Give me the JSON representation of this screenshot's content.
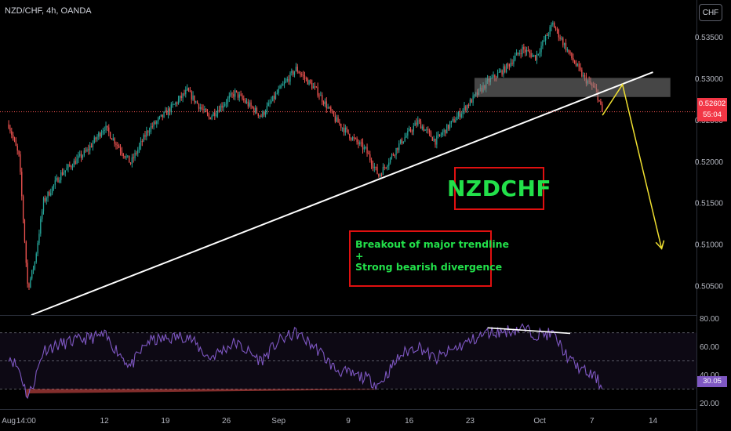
{
  "header": {
    "symbol": "NZD/CHF, 4h, OANDA",
    "currency_button": "CHF"
  },
  "annotations": {
    "title": "NZDCHF",
    "note_line1": "Breakout of major trendline",
    "note_plus": "+",
    "note_line2": "Strong bearish divergence"
  },
  "colors": {
    "up": "#26a69a",
    "down": "#ef5350",
    "trendline": "#ffffff",
    "projection": "#f0e030",
    "zone": "#808080",
    "rsi_line": "#7e57c2",
    "annotation_text": "#22e04a",
    "annotation_border": "#e01010"
  },
  "chart_data": [
    {
      "type": "candlestick",
      "title": "NZD/CHF, 4h, OANDA",
      "y_ticks": [
        "0.53500",
        "0.53000",
        "0.52500",
        "0.52000",
        "0.51500",
        "0.51000",
        "0.50500"
      ],
      "y_tick_values": [
        0.535,
        0.53,
        0.525,
        0.52,
        0.515,
        0.51,
        0.505
      ],
      "ylim": [
        0.5015,
        0.5395
      ],
      "x_ticks": [
        "Aug",
        "14:00",
        "12",
        "19",
        "26",
        "Sep",
        "9",
        "16",
        "23",
        "Oct",
        "7",
        "14"
      ],
      "x_tick_days": [
        0,
        2,
        11,
        18,
        25,
        31,
        39,
        46,
        53,
        61,
        67,
        74
      ],
      "x_range_days": [
        -1,
        79
      ],
      "last_price": "0.52602",
      "last_price_value": 0.52602,
      "countdown": "55:04",
      "price_path": [
        [
          0,
          0.5245
        ],
        [
          1.2,
          0.5205
        ],
        [
          2.2,
          0.5047
        ],
        [
          3,
          0.5079
        ],
        [
          4,
          0.5152
        ],
        [
          6,
          0.5185
        ],
        [
          9,
          0.5213
        ],
        [
          11,
          0.5242
        ],
        [
          14,
          0.5198
        ],
        [
          16,
          0.5238
        ],
        [
          18.5,
          0.5263
        ],
        [
          20.5,
          0.5285
        ],
        [
          23,
          0.5253
        ],
        [
          26,
          0.5283
        ],
        [
          29,
          0.5255
        ],
        [
          31,
          0.5285
        ],
        [
          33,
          0.5312
        ],
        [
          35.5,
          0.5284
        ],
        [
          37.5,
          0.5251
        ],
        [
          39.5,
          0.5228
        ],
        [
          41,
          0.5214
        ],
        [
          42.5,
          0.5183
        ],
        [
          45,
          0.5223
        ],
        [
          47,
          0.5248
        ],
        [
          49,
          0.5225
        ],
        [
          51,
          0.5248
        ],
        [
          53,
          0.5272
        ],
        [
          55,
          0.5296
        ],
        [
          57,
          0.5312
        ],
        [
          59,
          0.5336
        ],
        [
          60.5,
          0.5326
        ],
        [
          62.5,
          0.5366
        ],
        [
          64.5,
          0.5328
        ],
        [
          66,
          0.5302
        ],
        [
          67.5,
          0.5285
        ],
        [
          68.2,
          0.5258
        ]
      ],
      "trendline": {
        "from": [
          2.6,
          0.5015
        ],
        "to": [
          74,
          0.5308
        ]
      },
      "resistance_zone": {
        "x": [
          53.5,
          76
        ],
        "y": [
          0.5278,
          0.5301
        ]
      },
      "projection": [
        [
          68.2,
          0.5256
        ],
        [
          70.5,
          0.5293
        ],
        [
          75,
          0.5095
        ]
      ]
    },
    {
      "type": "line",
      "series": [
        {
          "name": "RSI"
        }
      ],
      "y_ticks": [
        "80.00",
        "60.00",
        "40.00",
        "20.00"
      ],
      "y_tick_values": [
        80,
        60,
        40,
        20
      ],
      "ylim": [
        15.8,
        82
      ],
      "band_lines": [
        70,
        50,
        30
      ],
      "last_value": "30.05",
      "last_value_num": 30.05,
      "rsi_path": [
        [
          0,
          54
        ],
        [
          1.2,
          44
        ],
        [
          2.2,
          24
        ],
        [
          3,
          37
        ],
        [
          4,
          58
        ],
        [
          6,
          62
        ],
        [
          9,
          66
        ],
        [
          11,
          68
        ],
        [
          14,
          46
        ],
        [
          16,
          64
        ],
        [
          18.5,
          66
        ],
        [
          20.5,
          68
        ],
        [
          23,
          52
        ],
        [
          26,
          63
        ],
        [
          29,
          50
        ],
        [
          31,
          64
        ],
        [
          33,
          70
        ],
        [
          35.5,
          58
        ],
        [
          37.5,
          44
        ],
        [
          39.5,
          40
        ],
        [
          41,
          38
        ],
        [
          42.5,
          33
        ],
        [
          45,
          54
        ],
        [
          47,
          61
        ],
        [
          49,
          51
        ],
        [
          51,
          58
        ],
        [
          53,
          64
        ],
        [
          55,
          70
        ],
        [
          57,
          71
        ],
        [
          59,
          73
        ],
        [
          60.5,
          69
        ],
        [
          62.5,
          69
        ],
        [
          64.5,
          50
        ],
        [
          66,
          43
        ],
        [
          67.5,
          38
        ],
        [
          68.2,
          30.05
        ]
      ],
      "divergence_line": {
        "from": [
          55,
          73.5
        ],
        "to": [
          64.5,
          69.5
        ]
      }
    }
  ]
}
